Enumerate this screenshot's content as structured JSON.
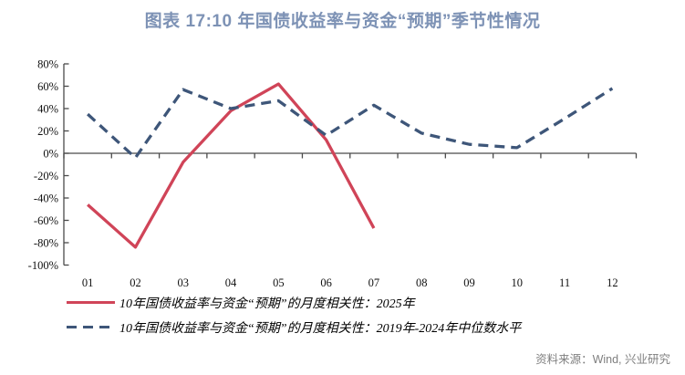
{
  "title": "图表 17:10 年国债收益率与资金“预期”季节性情况",
  "source": "资料来源：Wind, 兴业研究",
  "colors": {
    "title": "#7D92B5",
    "series_2025": "#D04458",
    "series_median": "#3E5679",
    "axis": "#4A4A4A",
    "source_text": "#7F7F7F"
  },
  "chart_data": {
    "type": "line",
    "categories": [
      "01",
      "02",
      "03",
      "04",
      "05",
      "06",
      "07",
      "08",
      "09",
      "10",
      "11",
      "12"
    ],
    "series": [
      {
        "name": "10年国债收益率与资金“预期”的月度相关性：2025年",
        "style": "solid",
        "color": "#D04458",
        "values": [
          -46,
          -84,
          -8,
          38,
          62,
          12,
          -67,
          null,
          null,
          null,
          null,
          null
        ]
      },
      {
        "name": "10年国债收益率与资金“预期”的月度相关性：2019年-2024年中位数水平",
        "style": "dashed",
        "color": "#3E5679",
        "values": [
          35,
          -4,
          57,
          40,
          47,
          16,
          43,
          18,
          8,
          5,
          31,
          58
        ]
      }
    ],
    "title": "图表 17:10 年国债收益率与资金“预期”季节性情况",
    "xlabel": "",
    "ylabel": "",
    "ylim": [
      -100,
      80
    ],
    "ytick_step": 20,
    "ytick_labels": [
      "80%",
      "60%",
      "40%",
      "20%",
      "0%",
      "-20%",
      "-40%",
      "-60%",
      "-80%",
      "-100%"
    ],
    "grid": false,
    "legend_position": "bottom-left"
  }
}
